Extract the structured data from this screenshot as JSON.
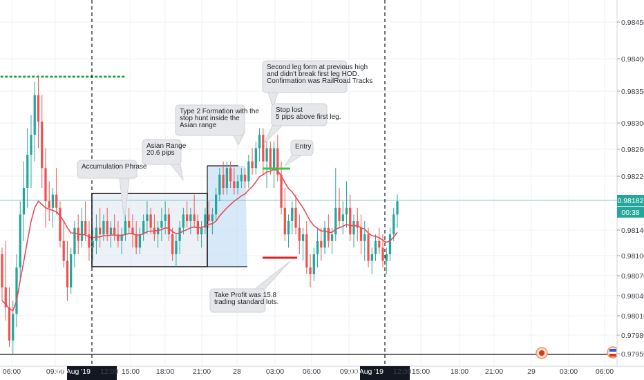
{
  "chart_data": {
    "type": "candlestick",
    "y_ticks": [
      "0.98450",
      "0.98400",
      "0.98350",
      "0.98300",
      "0.98260",
      "0.98220",
      "0.98180",
      "0.98140",
      "0.98100",
      "0.98070",
      "0.98040",
      "0.98010",
      "0.97980",
      "0.97950"
    ],
    "x_ticks": [
      "06:00",
      "09:00",
      "15:00",
      "18:00",
      "21:00",
      "28",
      "03:00",
      "06:00",
      "09:00",
      "15:00",
      "18:00",
      "21:00",
      "29",
      "03:00",
      "06:00"
    ],
    "x_highlight": [
      {
        "label": "27 Aug '19",
        "suffix": "12:00"
      },
      {
        "label": "28 Aug '19",
        "suffix": "12:00"
      }
    ],
    "price_label": "0.98182",
    "countdown_label": "00:38",
    "colors": {
      "up": "#26a69a",
      "down": "#ef5350",
      "ma": "#e84a57",
      "price_line": "#26a69a",
      "box_fill": "#dbe6ef",
      "range_fill": "#c9e0f6",
      "dotted_line": "#2e9e49",
      "entry_line": "#2ecc40",
      "target_line": "#e01f1f"
    },
    "candles": [
      [
        0.981,
        0.9811,
        0.9803,
        0.9805
      ],
      [
        0.9805,
        0.9812,
        0.98,
        0.9802
      ],
      [
        0.9802,
        0.9805,
        0.9796,
        0.9797
      ],
      [
        0.9797,
        0.9803,
        0.9795,
        0.9801
      ],
      [
        0.9801,
        0.981,
        0.9799,
        0.9808
      ],
      [
        0.9808,
        0.9818,
        0.9806,
        0.9816
      ],
      [
        0.9816,
        0.9824,
        0.9812,
        0.982
      ],
      [
        0.982,
        0.9829,
        0.9817,
        0.9825
      ],
      [
        0.9825,
        0.9831,
        0.982,
        0.9828
      ],
      [
        0.9828,
        0.9836,
        0.9824,
        0.9834
      ],
      [
        0.9834,
        0.9837,
        0.9826,
        0.983
      ],
      [
        0.983,
        0.9834,
        0.982,
        0.9823
      ],
      [
        0.9823,
        0.9826,
        0.9814,
        0.9818
      ],
      [
        0.9818,
        0.9821,
        0.9815,
        0.9817
      ],
      [
        0.9817,
        0.982,
        0.9814,
        0.9819
      ],
      [
        0.9819,
        0.9823,
        0.9816,
        0.9817
      ],
      [
        0.9817,
        0.9818,
        0.9811,
        0.9812
      ],
      [
        0.9812,
        0.9815,
        0.9808,
        0.9809
      ],
      [
        0.9809,
        0.9812,
        0.9803,
        0.9805
      ],
      [
        0.9805,
        0.9811,
        0.9804,
        0.981
      ],
      [
        0.981,
        0.9815,
        0.9808,
        0.9814
      ],
      [
        0.9814,
        0.9816,
        0.981,
        0.9812
      ],
      [
        0.9812,
        0.9817,
        0.9811,
        0.9815
      ],
      [
        0.9815,
        0.9818,
        0.9812,
        0.9813
      ],
      [
        0.9813,
        0.9815,
        0.9809,
        0.9811
      ],
      [
        0.9811,
        0.9814,
        0.9809,
        0.9812
      ],
      [
        0.9812,
        0.9816,
        0.981,
        0.9814
      ],
      [
        0.9814,
        0.9817,
        0.9811,
        0.9813
      ],
      [
        0.9813,
        0.9816,
        0.9812,
        0.9815
      ],
      [
        0.9815,
        0.9817,
        0.9812,
        0.9813
      ],
      [
        0.9813,
        0.9815,
        0.9811,
        0.9814
      ],
      [
        0.9814,
        0.9816,
        0.9812,
        0.9813
      ],
      [
        0.9813,
        0.9815,
        0.9811,
        0.9812
      ],
      [
        0.9812,
        0.9814,
        0.981,
        0.9813
      ],
      [
        0.9813,
        0.9816,
        0.9812,
        0.9815
      ],
      [
        0.9815,
        0.9817,
        0.9813,
        0.9814
      ],
      [
        0.9814,
        0.9816,
        0.9811,
        0.9813
      ],
      [
        0.9813,
        0.9815,
        0.981,
        0.9811
      ],
      [
        0.9811,
        0.9814,
        0.981,
        0.9813
      ],
      [
        0.9813,
        0.9816,
        0.9812,
        0.9815
      ],
      [
        0.9815,
        0.9818,
        0.9813,
        0.9816
      ],
      [
        0.9816,
        0.9817,
        0.9813,
        0.9814
      ],
      [
        0.9814,
        0.9816,
        0.9812,
        0.9813
      ],
      [
        0.9813,
        0.9815,
        0.9811,
        0.9814
      ],
      [
        0.9814,
        0.9817,
        0.9812,
        0.9815
      ],
      [
        0.9815,
        0.9818,
        0.9813,
        0.9816
      ],
      [
        0.9816,
        0.9817,
        0.9812,
        0.9813
      ],
      [
        0.9813,
        0.9814,
        0.9809,
        0.981
      ],
      [
        0.981,
        0.9813,
        0.9808,
        0.9812
      ],
      [
        0.9812,
        0.9815,
        0.981,
        0.9814
      ],
      [
        0.9814,
        0.9817,
        0.9813,
        0.9816
      ],
      [
        0.9816,
        0.9818,
        0.9814,
        0.9815
      ],
      [
        0.9815,
        0.9817,
        0.9813,
        0.9816
      ],
      [
        0.9816,
        0.9819,
        0.9814,
        0.9815
      ],
      [
        0.9815,
        0.9816,
        0.9812,
        0.9813
      ],
      [
        0.9813,
        0.9815,
        0.9811,
        0.9814
      ],
      [
        0.9814,
        0.9817,
        0.9813,
        0.9816
      ],
      [
        0.9816,
        0.9818,
        0.9814,
        0.9815
      ],
      [
        0.9815,
        0.9817,
        0.9813,
        0.9816
      ],
      [
        0.9816,
        0.982,
        0.9815,
        0.9819
      ],
      [
        0.9819,
        0.9823,
        0.9818,
        0.9822
      ],
      [
        0.9822,
        0.9824,
        0.9819,
        0.982
      ],
      [
        0.982,
        0.9824,
        0.9819,
        0.9823
      ],
      [
        0.9823,
        0.9824,
        0.982,
        0.9821
      ],
      [
        0.9821,
        0.9823,
        0.9819,
        0.982
      ],
      [
        0.982,
        0.9822,
        0.9819,
        0.9821
      ],
      [
        0.9821,
        0.9823,
        0.982,
        0.9822
      ],
      [
        0.9822,
        0.9823,
        0.982,
        0.9821
      ],
      [
        0.9821,
        0.9825,
        0.982,
        0.9824
      ],
      [
        0.9824,
        0.9826,
        0.9822,
        0.9823
      ],
      [
        0.9823,
        0.9827,
        0.9822,
        0.9826
      ],
      [
        0.9826,
        0.9829,
        0.9824,
        0.9828
      ],
      [
        0.9828,
        0.9829,
        0.9822,
        0.9824
      ],
      [
        0.9824,
        0.9827,
        0.982,
        0.9826
      ],
      [
        0.9826,
        0.9827,
        0.9822,
        0.9823
      ],
      [
        0.9823,
        0.9827,
        0.982,
        0.9826
      ],
      [
        0.9826,
        0.9828,
        0.9821,
        0.9822
      ],
      [
        0.9822,
        0.9824,
        0.9816,
        0.9817
      ],
      [
        0.9817,
        0.982,
        0.9812,
        0.9813
      ],
      [
        0.9813,
        0.9816,
        0.9811,
        0.9815
      ],
      [
        0.9815,
        0.9818,
        0.9813,
        0.9817
      ],
      [
        0.9817,
        0.9819,
        0.9813,
        0.9814
      ],
      [
        0.9814,
        0.9816,
        0.981,
        0.9812
      ],
      [
        0.9812,
        0.9814,
        0.9809,
        0.9813
      ],
      [
        0.9813,
        0.9815,
        0.9807,
        0.9808
      ],
      [
        0.9808,
        0.981,
        0.9805,
        0.9807
      ],
      [
        0.9807,
        0.9811,
        0.9806,
        0.981
      ],
      [
        0.981,
        0.9814,
        0.9808,
        0.9812
      ],
      [
        0.9812,
        0.9814,
        0.9809,
        0.9811
      ],
      [
        0.9811,
        0.9815,
        0.981,
        0.9814
      ],
      [
        0.9814,
        0.9816,
        0.9811,
        0.9812
      ],
      [
        0.9812,
        0.9814,
        0.981,
        0.9813
      ],
      [
        0.9813,
        0.9823,
        0.9812,
        0.9817
      ],
      [
        0.9817,
        0.982,
        0.9814,
        0.9815
      ],
      [
        0.9815,
        0.9818,
        0.9813,
        0.9816
      ],
      [
        0.9816,
        0.9821,
        0.9814,
        0.9817
      ],
      [
        0.9817,
        0.9819,
        0.9812,
        0.9813
      ],
      [
        0.9813,
        0.9816,
        0.9811,
        0.9815
      ],
      [
        0.9815,
        0.9817,
        0.9812,
        0.9814
      ],
      [
        0.9814,
        0.9816,
        0.981,
        0.9812
      ],
      [
        0.9812,
        0.9815,
        0.9809,
        0.9813
      ],
      [
        0.9813,
        0.9814,
        0.9808,
        0.9809
      ],
      [
        0.9809,
        0.9811,
        0.9807,
        0.981
      ],
      [
        0.981,
        0.9813,
        0.9809,
        0.9812
      ],
      [
        0.9812,
        0.9814,
        0.981,
        0.9811
      ],
      [
        0.9811,
        0.9813,
        0.9808,
        0.9809
      ],
      [
        0.9809,
        0.9811,
        0.9807,
        0.981
      ],
      [
        0.981,
        0.9814,
        0.9809,
        0.9813
      ],
      [
        0.9813,
        0.9817,
        0.9812,
        0.9816
      ],
      [
        0.9816,
        0.9819,
        0.9814,
        0.9818
      ]
    ],
    "ma": [
      0.9803,
      0.98025,
      0.98018,
      0.98015,
      0.9803,
      0.9806,
      0.9809,
      0.9812,
      0.9815,
      0.9817,
      0.9818,
      0.98175,
      0.9817,
      0.98168,
      0.98166,
      0.98164,
      0.98158,
      0.9815,
      0.9814,
      0.98132,
      0.98132,
      0.9813,
      0.9813,
      0.98129,
      0.98126,
      0.98125,
      0.98126,
      0.98126,
      0.98128,
      0.98128,
      0.98129,
      0.98129,
      0.98128,
      0.98128,
      0.9813,
      0.98131,
      0.98131,
      0.98129,
      0.98129,
      0.98131,
      0.98134,
      0.98135,
      0.98135,
      0.98136,
      0.98137,
      0.9814,
      0.98139,
      0.98134,
      0.98131,
      0.98132,
      0.98135,
      0.98137,
      0.9814,
      0.98141,
      0.9814,
      0.9814,
      0.98143,
      0.98145,
      0.98146,
      0.9815,
      0.98158,
      0.98164,
      0.9817,
      0.98175,
      0.9818,
      0.98184,
      0.98188,
      0.98191,
      0.98197,
      0.98202,
      0.98209,
      0.98217,
      0.9822,
      0.98224,
      0.98225,
      0.98228,
      0.98226,
      0.98218,
      0.98208,
      0.98199,
      0.98194,
      0.98186,
      0.98178,
      0.9817,
      0.9816,
      0.9815,
      0.98143,
      0.98139,
      0.98135,
      0.98135,
      0.98133,
      0.98133,
      0.98138,
      0.9814,
      0.98142,
      0.98145,
      0.98143,
      0.98143,
      0.98143,
      0.9814,
      0.98138,
      0.98132,
      0.98128,
      0.98127,
      0.98125,
      0.98121,
      0.98118,
      0.9812,
      0.98126,
      0.98133
    ],
    "annotations": [
      {
        "lines": [
          "Accumulation Phrase"
        ]
      },
      {
        "lines": [
          "Asian Range",
          "20.6 pips"
        ]
      },
      {
        "lines": [
          "Type 2 Formation with the",
          "stop hunt inside the",
          "Asian range"
        ]
      },
      {
        "lines": [
          "Second leg form at previous high",
          "and didn't break first leg HOD.",
          "Confirmation was RailRoad Tracks"
        ]
      },
      {
        "lines": [
          "Stop lost",
          "5 pips above first leg."
        ]
      },
      {
        "lines": [
          "Entry"
        ]
      },
      {
        "lines": [
          "Take Profit was 15.8",
          "trading standard lots."
        ]
      }
    ]
  }
}
